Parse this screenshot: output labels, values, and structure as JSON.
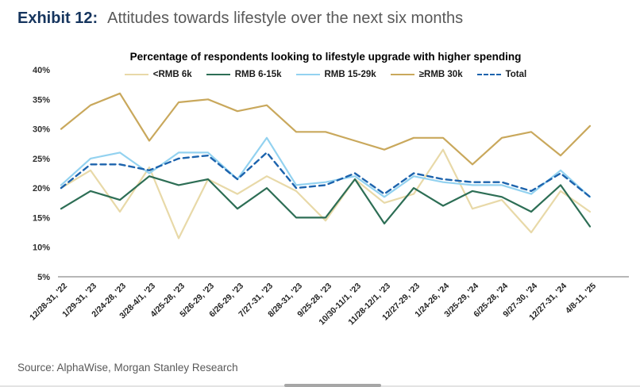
{
  "exhibit": {
    "label": "Exhibit 12:",
    "title": "Attitudes towards lifestyle over the next six months"
  },
  "source": "Source: AlphaWise, Morgan Stanley Research",
  "chart_data": {
    "type": "line",
    "title": "Percentage of respondents looking to lifestyle upgrade with higher spending",
    "xlabel": "",
    "ylabel": "",
    "grid": false,
    "legend_position": "top",
    "ylim": [
      5,
      40
    ],
    "ytick_values": [
      5,
      10,
      15,
      20,
      25,
      30,
      35,
      40
    ],
    "ytick_labels": [
      "5%",
      "10%",
      "15%",
      "20%",
      "25%",
      "30%",
      "35%",
      "40%"
    ],
    "categories": [
      "12/28-31, '22",
      "1/29-31, '23",
      "2/24-28, '23",
      "3/28-4/1, '23",
      "4/25-28, '23",
      "5/26-29, '23",
      "6/26-29, '23",
      "7/27-31, '23",
      "8/28-31, '23",
      "9/25-28, '23",
      "10/30-11/1, '23",
      "11/28-12/1, '23",
      "12/27-29, '23",
      "1/24-26, '24",
      "3/25-29, '24",
      "6/25-28, '24",
      "9/27-30, '24",
      "12/27-31, '24",
      "4/8-11, '25"
    ],
    "series": [
      {
        "id": "lt-rmb6k",
        "name": "<RMB 6k",
        "color": "#e8d9a8",
        "dash": null,
        "values": [
          20,
          23,
          16,
          23.5,
          11.5,
          21.5,
          19,
          22,
          19.5,
          14.5,
          21.5,
          17.5,
          19,
          26.5,
          16.5,
          18,
          12.5,
          19.5,
          16
        ]
      },
      {
        "id": "rmb6-15k",
        "name": "RMB 6-15k",
        "color": "#2d6e55",
        "dash": null,
        "values": [
          16.5,
          19.5,
          18,
          22,
          20.5,
          21.5,
          16.5,
          20,
          15,
          15,
          21.5,
          14,
          20,
          17,
          19.5,
          18.5,
          16,
          20.5,
          13.5
        ]
      },
      {
        "id": "rmb15-29k",
        "name": "RMB 15-29k",
        "color": "#93d2f0",
        "dash": null,
        "values": [
          20.5,
          25,
          26,
          22.5,
          26,
          26,
          21.5,
          28.5,
          20.5,
          21,
          22,
          18.5,
          22,
          21,
          20.5,
          20.5,
          19,
          23,
          18.5
        ]
      },
      {
        "id": "gte-rmb30k",
        "name": "≥RMB 30k",
        "color": "#c9a85c",
        "dash": null,
        "values": [
          30,
          34,
          36,
          28,
          34.5,
          35,
          33,
          34,
          29.5,
          29.5,
          28,
          26.5,
          28.5,
          28.5,
          24,
          28.5,
          29.5,
          25.5,
          30.5
        ]
      },
      {
        "id": "total",
        "name": "Total",
        "color": "#1c63ad",
        "dash": "7 5",
        "values": [
          20,
          24,
          24,
          23,
          25,
          25.5,
          21.5,
          26,
          20,
          20.5,
          22.5,
          19,
          22.5,
          21.5,
          21,
          21,
          19.5,
          22.5,
          18.5
        ]
      }
    ]
  }
}
